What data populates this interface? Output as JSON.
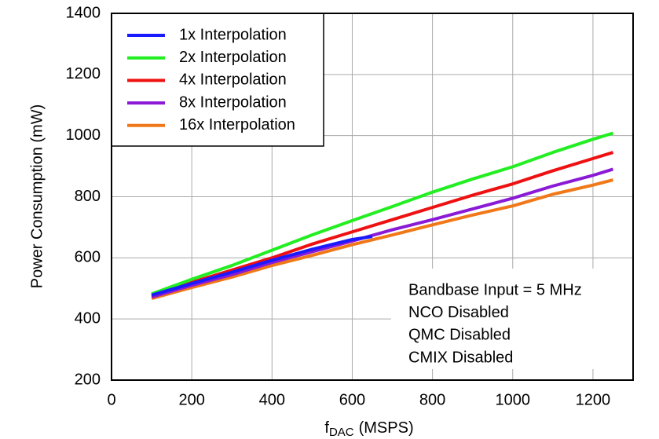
{
  "chart_data": {
    "type": "line",
    "y_label": "Power Consumption (mW)",
    "x_label_parts": [
      "f",
      "DAC",
      "(MSPS)"
    ],
    "xlim": [
      0,
      1300
    ],
    "xticks": [
      0,
      200,
      400,
      600,
      800,
      1000,
      1200
    ],
    "ylim": [
      200,
      1400
    ],
    "yticks": [
      200,
      400,
      600,
      800,
      1000,
      1200,
      1400
    ],
    "grid": true,
    "legend": "upper left",
    "series": [
      {
        "name": "1x Interpolation",
        "color": "#1a1aff",
        "x": [
          100,
          200,
          300,
          400,
          500,
          600,
          650
        ],
        "values": [
          478,
          516,
          553,
          592,
          628,
          660,
          670
        ]
      },
      {
        "name": "2x Interpolation",
        "color": "#22ee22",
        "x": [
          100,
          200,
          300,
          400,
          500,
          600,
          700,
          800,
          900,
          1000,
          1100,
          1200,
          1250
        ],
        "values": [
          482,
          530,
          575,
          625,
          675,
          722,
          768,
          815,
          858,
          898,
          945,
          988,
          1008
        ]
      },
      {
        "name": "4x Interpolation",
        "color": "#ee1111",
        "x": [
          100,
          200,
          300,
          400,
          500,
          600,
          700,
          800,
          900,
          1000,
          1100,
          1200,
          1250
        ],
        "values": [
          477,
          520,
          560,
          600,
          645,
          685,
          725,
          765,
          805,
          842,
          885,
          925,
          945
        ]
      },
      {
        "name": "8x Interpolation",
        "color": "#8a1ad6",
        "x": [
          100,
          200,
          300,
          400,
          500,
          600,
          700,
          800,
          900,
          1000,
          1100,
          1200,
          1250
        ],
        "values": [
          472,
          510,
          545,
          585,
          620,
          655,
          692,
          725,
          760,
          795,
          835,
          870,
          890
        ]
      },
      {
        "name": "16x Interpolation",
        "color": "#f07818",
        "x": [
          100,
          200,
          300,
          400,
          500,
          600,
          700,
          800,
          900,
          1000,
          1100,
          1200,
          1250
        ],
        "values": [
          467,
          503,
          537,
          575,
          608,
          643,
          675,
          708,
          740,
          770,
          808,
          838,
          855
        ]
      }
    ],
    "annotations": [
      "Bandbase Input =  5 MHz",
      "NCO Disabled",
      "QMC Disabled",
      "CMIX Disabled"
    ]
  }
}
